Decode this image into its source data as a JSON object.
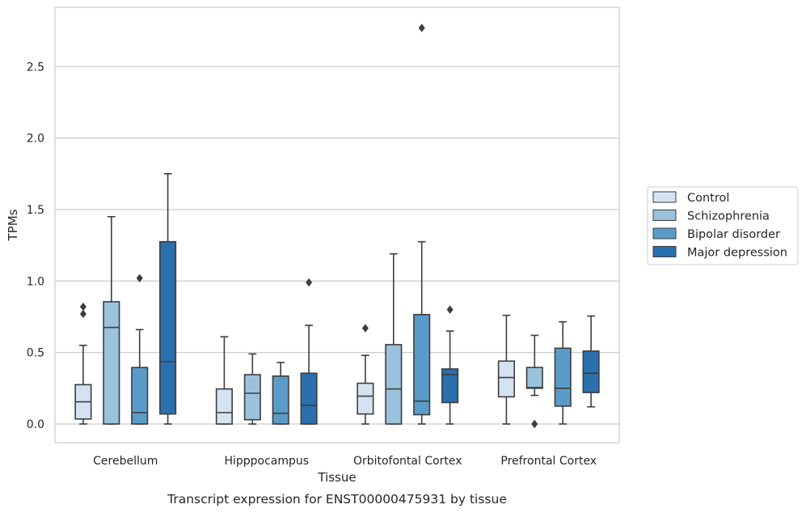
{
  "chart_data": {
    "type": "box",
    "xlabel": "Tissue",
    "ylabel": "TPMs",
    "caption": "Transcript expression for ENST00000475931 by tissue",
    "categories": [
      "Cerebellum",
      "Hipppocampus",
      "Orbitofontal Cortex",
      "Prefrontal Cortex"
    ],
    "ylim": [
      -0.13,
      2.92
    ],
    "yticks": [
      0.0,
      0.5,
      1.0,
      1.5,
      2.0,
      2.5
    ],
    "ytick_labels": [
      "0.0",
      "0.5",
      "1.0",
      "1.5",
      "2.0",
      "2.5"
    ],
    "grid": "horizontal",
    "legend_position": "right",
    "series": [
      {
        "name": "Control",
        "color": "#d4e3f1",
        "boxes": [
          {
            "whisker_low": 0.0,
            "q1": 0.035,
            "median": 0.155,
            "q3": 0.275,
            "whisker_high": 0.55,
            "outliers": [
              0.77,
              0.82
            ]
          },
          {
            "whisker_low": 0.0,
            "q1": 0.0,
            "median": 0.08,
            "q3": 0.245,
            "whisker_high": 0.61,
            "outliers": []
          },
          {
            "whisker_low": 0.0,
            "q1": 0.07,
            "median": 0.195,
            "q3": 0.285,
            "whisker_high": 0.48,
            "outliers": [
              0.67
            ]
          },
          {
            "whisker_low": 0.0,
            "q1": 0.19,
            "median": 0.325,
            "q3": 0.44,
            "whisker_high": 0.76,
            "outliers": []
          }
        ]
      },
      {
        "name": "Schizophrenia",
        "color": "#9ac2dd",
        "boxes": [
          {
            "whisker_low": 0.0,
            "q1": 0.0,
            "median": 0.675,
            "q3": 0.855,
            "whisker_high": 1.45,
            "outliers": []
          },
          {
            "whisker_low": 0.0,
            "q1": 0.03,
            "median": 0.215,
            "q3": 0.345,
            "whisker_high": 0.49,
            "outliers": []
          },
          {
            "whisker_low": 0.0,
            "q1": 0.0,
            "median": 0.245,
            "q3": 0.555,
            "whisker_high": 1.19,
            "outliers": []
          },
          {
            "whisker_low": 0.2,
            "q1": 0.25,
            "median": 0.255,
            "q3": 0.395,
            "whisker_high": 0.62,
            "outliers": [
              0.0
            ]
          }
        ]
      },
      {
        "name": "Bipolar disorder",
        "color": "#5a9bc9",
        "boxes": [
          {
            "whisker_low": 0.0,
            "q1": 0.0,
            "median": 0.08,
            "q3": 0.395,
            "whisker_high": 0.66,
            "outliers": [
              1.02
            ]
          },
          {
            "whisker_low": 0.0,
            "q1": 0.0,
            "median": 0.075,
            "q3": 0.335,
            "whisker_high": 0.43,
            "outliers": []
          },
          {
            "whisker_low": 0.0,
            "q1": 0.065,
            "median": 0.16,
            "q3": 0.765,
            "whisker_high": 1.275,
            "outliers": [
              2.77
            ]
          },
          {
            "whisker_low": 0.0,
            "q1": 0.125,
            "median": 0.25,
            "q3": 0.53,
            "whisker_high": 0.715,
            "outliers": []
          }
        ]
      },
      {
        "name": "Major depression",
        "color": "#2a6fae",
        "boxes": [
          {
            "whisker_low": 0.0,
            "q1": 0.07,
            "median": 0.435,
            "q3": 1.275,
            "whisker_high": 1.75,
            "outliers": []
          },
          {
            "whisker_low": 0.0,
            "q1": 0.0,
            "median": 0.13,
            "q3": 0.355,
            "whisker_high": 0.69,
            "outliers": [
              0.99
            ]
          },
          {
            "whisker_low": 0.0,
            "q1": 0.15,
            "median": 0.345,
            "q3": 0.385,
            "whisker_high": 0.65,
            "outliers": [
              0.8
            ]
          },
          {
            "whisker_low": 0.12,
            "q1": 0.22,
            "median": 0.355,
            "q3": 0.51,
            "whisker_high": 0.755,
            "outliers": []
          }
        ]
      }
    ]
  }
}
